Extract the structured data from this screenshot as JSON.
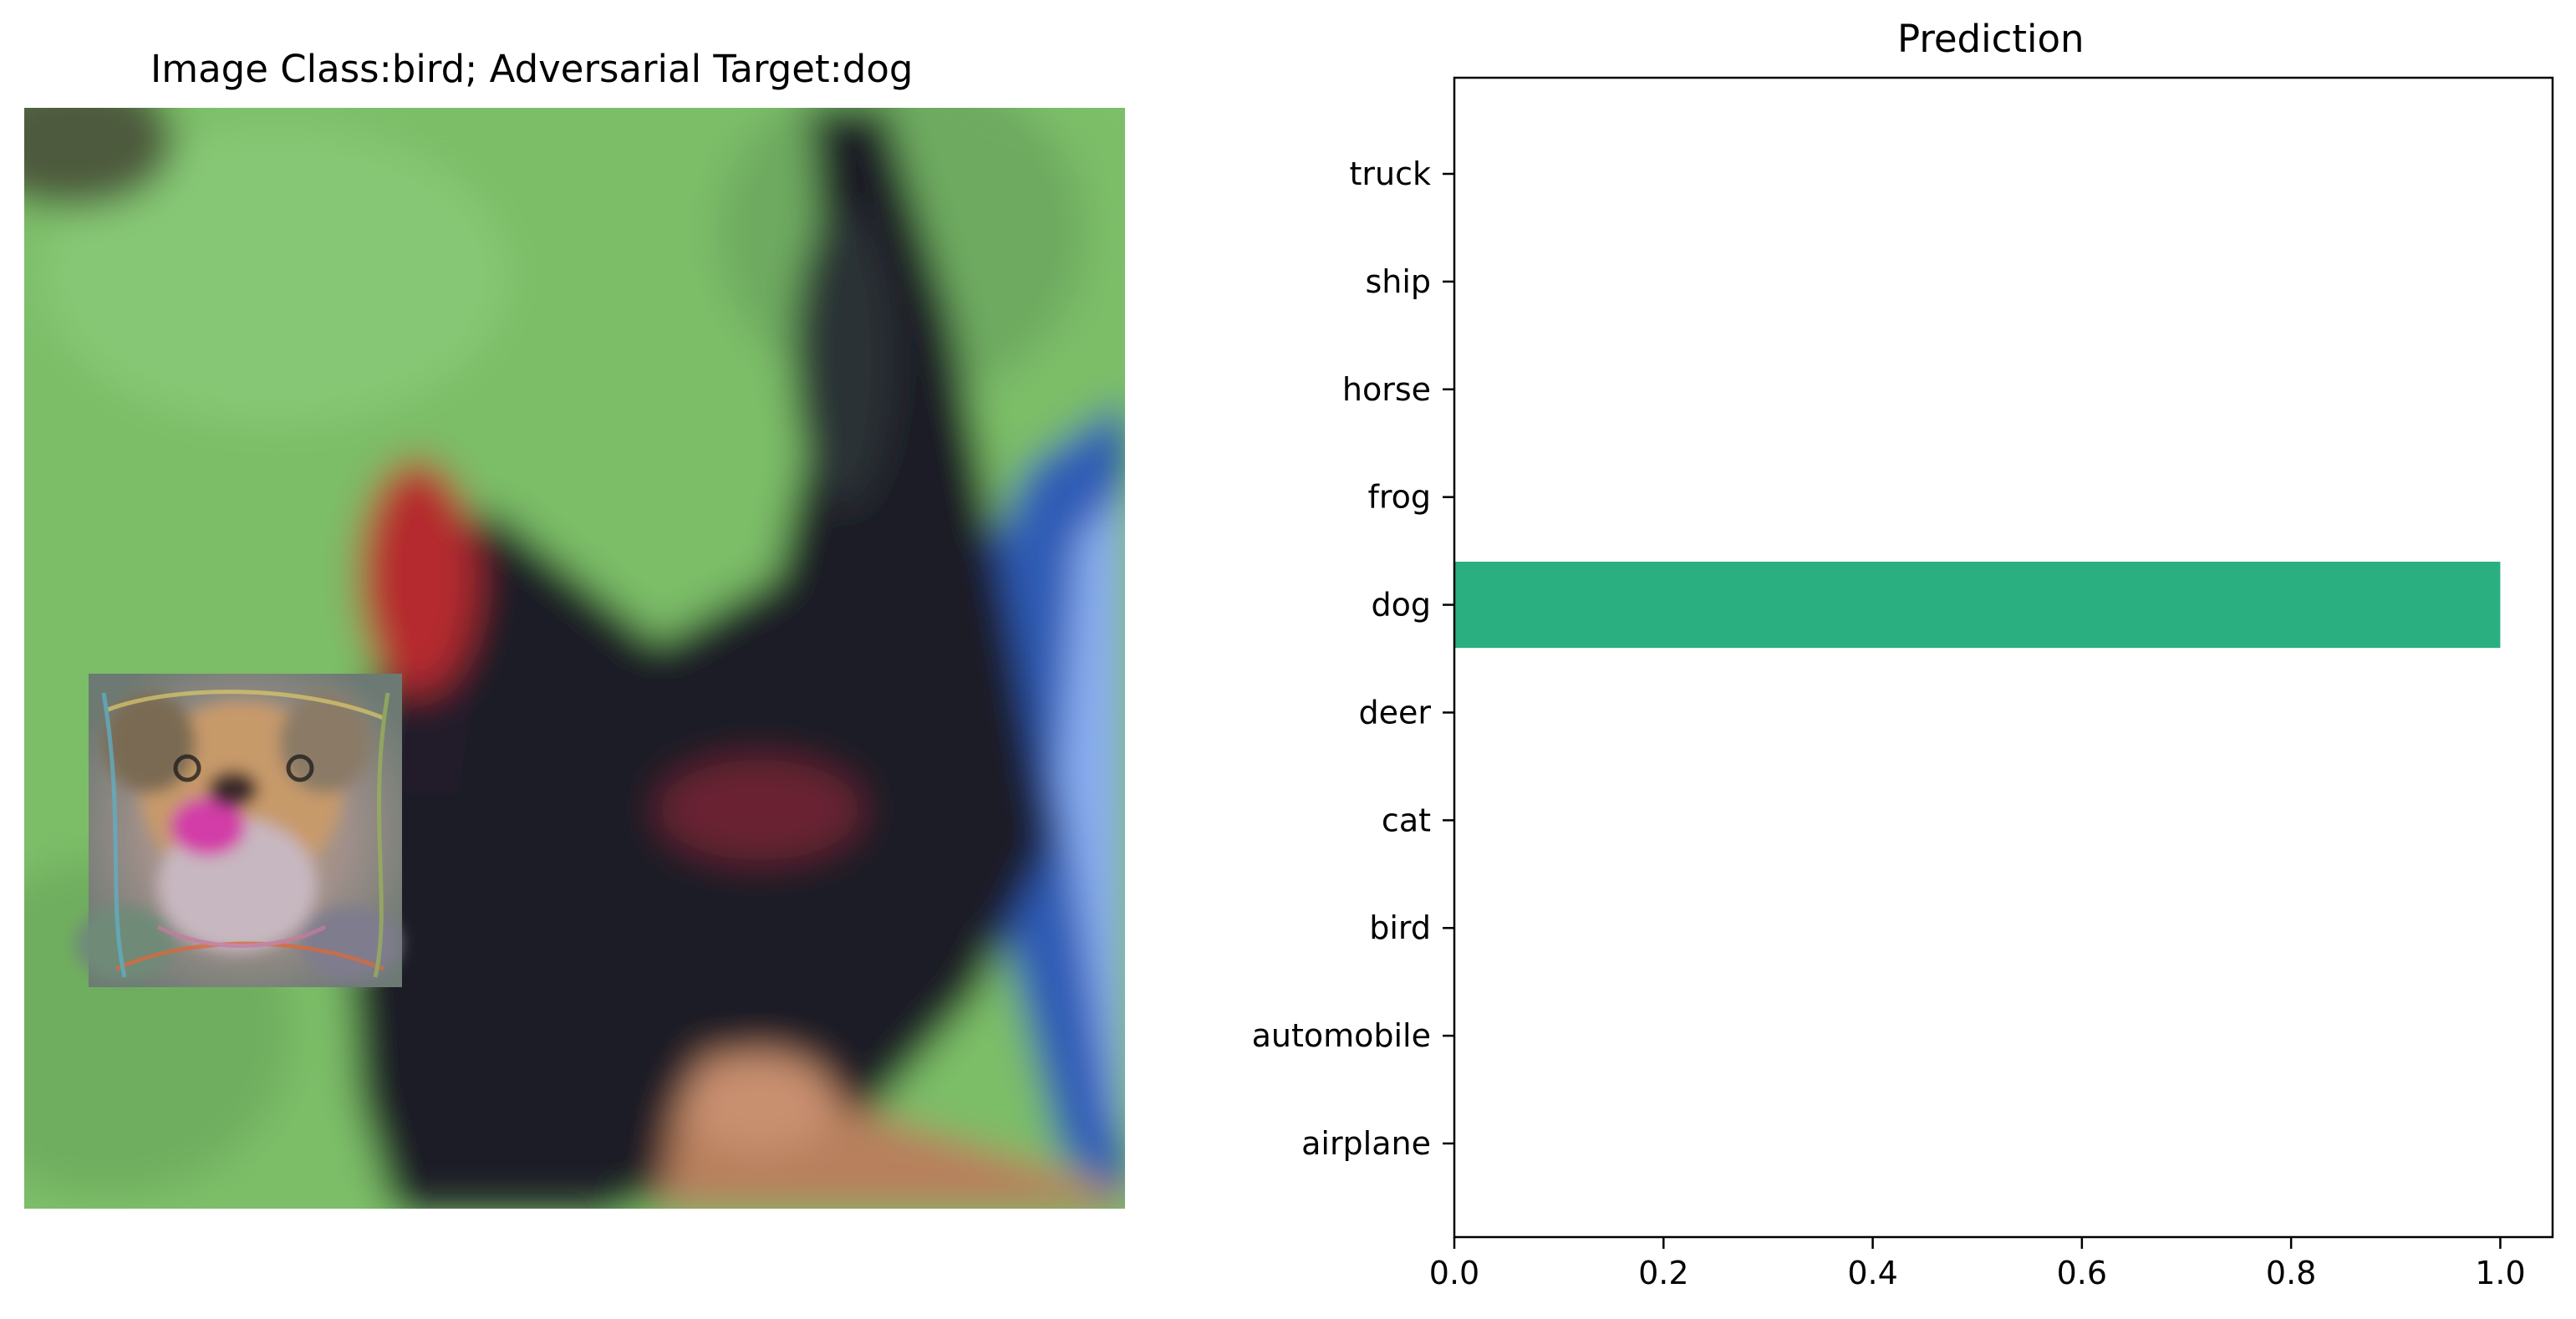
{
  "left_panel": {
    "title": "Image Class:bird; Adversarial Target:dog"
  },
  "colors": {
    "bar": "#2aaf81",
    "grass": "#7cc06a",
    "bird_dark": "#1e1b26",
    "bird_red": "#b52a2f",
    "shirt_blue": "#2f5cb5"
  },
  "chart_data": {
    "type": "bar",
    "orientation": "horizontal",
    "title": "Prediction",
    "categories": [
      "airplane",
      "automobile",
      "bird",
      "cat",
      "deer",
      "dog",
      "frog",
      "horse",
      "ship",
      "truck"
    ],
    "values": [
      0.0,
      0.0,
      0.0,
      0.0,
      0.0,
      1.0,
      0.0,
      0.0,
      0.0,
      0.0
    ],
    "xlim": [
      0.0,
      1.05
    ],
    "xticks": [
      "0.0",
      "0.2",
      "0.4",
      "0.6",
      "0.8",
      "1.0"
    ],
    "xtick_values": [
      0.0,
      0.2,
      0.4,
      0.6,
      0.8,
      1.0
    ],
    "xlabel": "",
    "ylabel": "",
    "grid": false
  }
}
